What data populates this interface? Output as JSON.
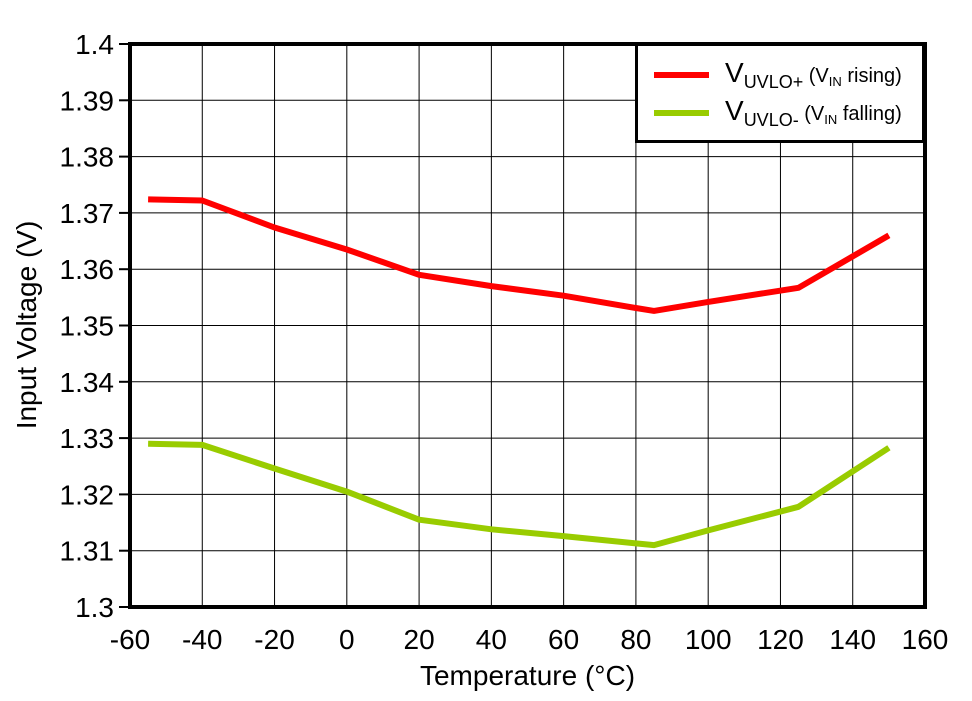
{
  "chart_data": {
    "type": "line",
    "title": "",
    "xlabel": "Temperature (°C)",
    "ylabel": "Input Voltage (V)",
    "xlim": [
      -60,
      160
    ],
    "ylim": [
      1.3,
      1.4
    ],
    "grid": true,
    "legend_position": "top-right",
    "x_ticks": [
      -60,
      -40,
      -20,
      0,
      20,
      40,
      60,
      80,
      100,
      120,
      140,
      160
    ],
    "x_tick_labels": [
      "-60",
      "-40",
      "-20",
      "0",
      "20",
      "40",
      "60",
      "80",
      "100",
      "120",
      "140",
      "160"
    ],
    "y_ticks": [
      1.3,
      1.31,
      1.32,
      1.33,
      1.34,
      1.35,
      1.36,
      1.37,
      1.38,
      1.39,
      1.4
    ],
    "y_tick_labels": [
      "1.3",
      "1.31",
      "1.32",
      "1.33",
      "1.34",
      "1.35",
      "1.36",
      "1.37",
      "1.38",
      "1.39",
      "1.4"
    ],
    "x": [
      -55,
      -40,
      -20,
      0,
      20,
      40,
      60,
      80,
      85,
      100,
      125,
      150
    ],
    "series": [
      {
        "name": "VUVLO+ (VIN rising)",
        "color": "#FF0000",
        "values": [
          1.3724,
          1.3722,
          1.3674,
          1.3635,
          1.359,
          1.357,
          1.3553,
          1.3531,
          1.3526,
          1.3542,
          1.3567,
          1.366
        ]
      },
      {
        "name": "VUVLO- (VIN falling)",
        "color": "#99CC00",
        "values": [
          1.329,
          1.3288,
          1.3246,
          1.3205,
          1.3155,
          1.3138,
          1.3126,
          1.3113,
          1.311,
          1.3136,
          1.3178,
          1.3283
        ]
      }
    ]
  },
  "axes": {
    "x_title": "Temperature (°C)",
    "y_title": "Input Voltage (V)"
  },
  "legend": {
    "entries": [
      {
        "main": "V",
        "sub": "UVLO+",
        "detail_pre": " (V",
        "detail_sub": "IN",
        "detail_post": " rising)",
        "color": "#FF0000"
      },
      {
        "main": "V",
        "sub": "UVLO-",
        "detail_pre": " (V",
        "detail_sub": "IN",
        "detail_post": " falling)",
        "color": "#99CC00"
      }
    ]
  },
  "colors": {
    "frame": "#000000",
    "grid": "#000000",
    "text": "#000000",
    "background": "#FFFFFF"
  }
}
